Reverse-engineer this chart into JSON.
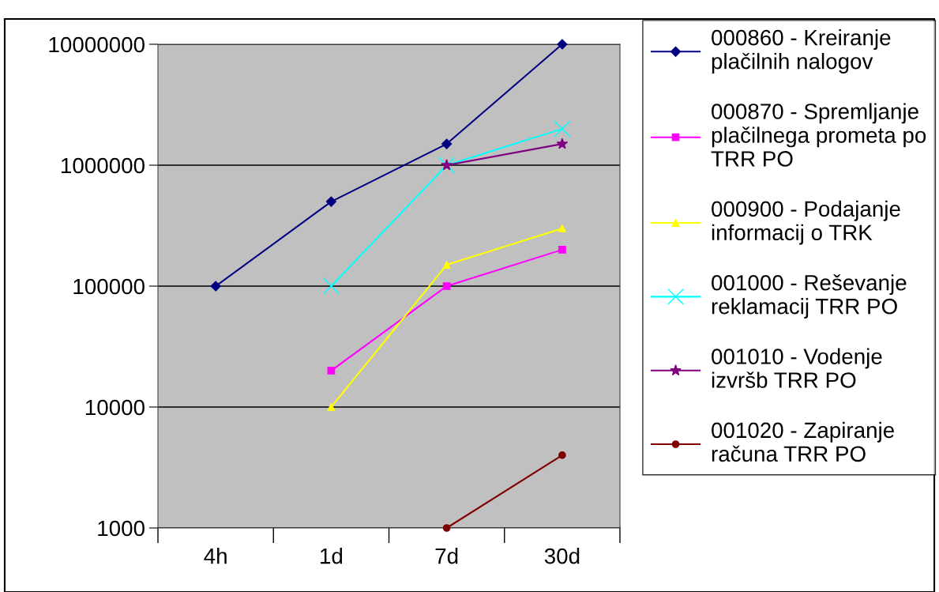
{
  "chart_data": {
    "type": "line",
    "categories": [
      "4h",
      "1d",
      "7d",
      "30d"
    ],
    "log": true,
    "ylim": [
      1000,
      10000000
    ],
    "yticks": [
      1000,
      10000,
      100000,
      1000000,
      10000000
    ],
    "grid": "y",
    "legend": "right",
    "series": [
      {
        "name": "000860 - Kreiranje\nplačilnih nalogov",
        "color": "#000080",
        "marker": "diamond",
        "values": [
          100000,
          500000,
          1500000,
          10000000
        ]
      },
      {
        "name": "000870 - Spremljanje\nplačilnega prometa po\nTRR PO",
        "color": "#ff00ff",
        "marker": "square",
        "values": [
          null,
          20000,
          100000,
          200000
        ]
      },
      {
        "name": "000900 - Podajanje\ninformacij o TRK",
        "color": "#ffff00",
        "marker": "triangle",
        "values": [
          null,
          10000,
          150000,
          300000
        ]
      },
      {
        "name": "001000 - Reševanje\nreklamacij TRR PO",
        "color": "#00ffff",
        "marker": "cross",
        "values": [
          null,
          100000,
          1000000,
          2000000
        ]
      },
      {
        "name": "001010 - Vodenje\nizvršb TRR PO",
        "color": "#800080",
        "marker": "star",
        "values": [
          null,
          null,
          1000000,
          1500000
        ]
      },
      {
        "name": "001020 - Zapiranje\nračuna TRR PO",
        "color": "#800000",
        "marker": "circle",
        "values": [
          null,
          null,
          1000,
          4000
        ]
      }
    ]
  }
}
